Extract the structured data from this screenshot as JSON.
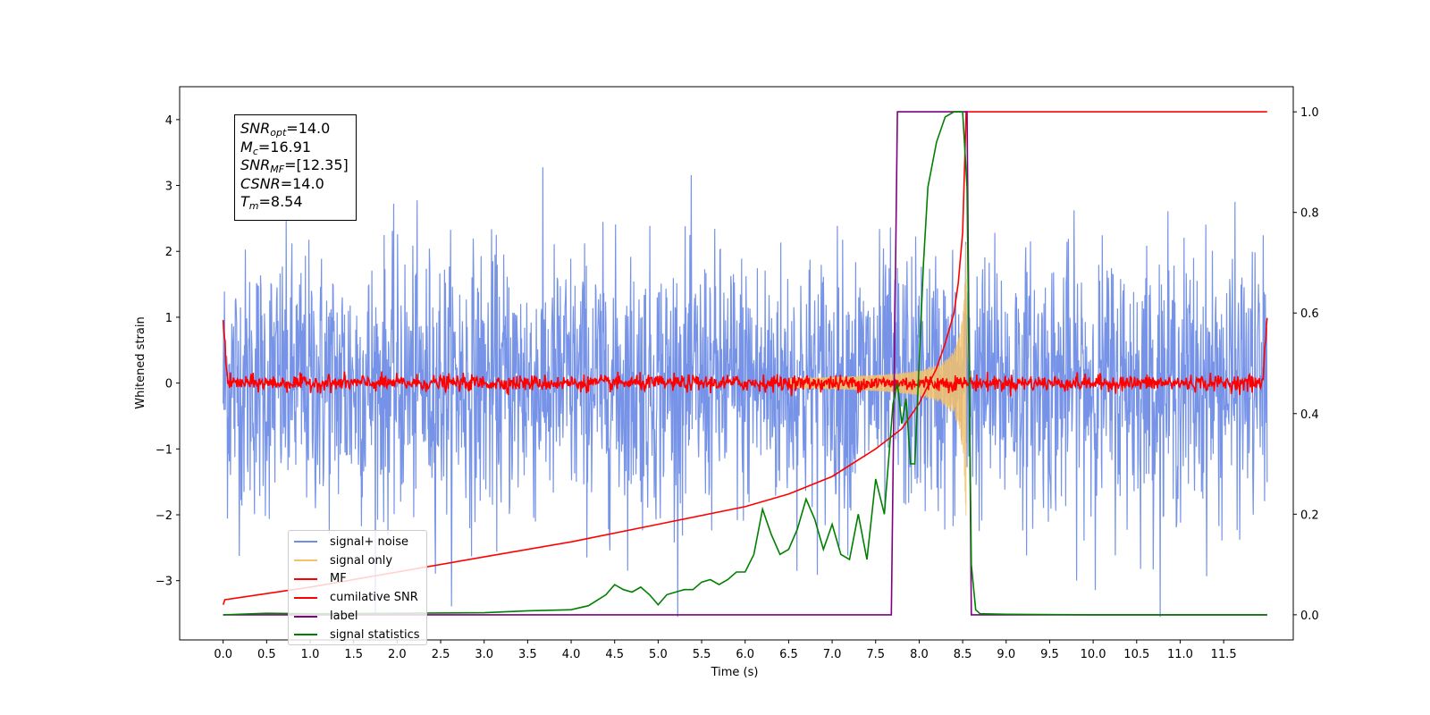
{
  "chart_data": {
    "type": "line",
    "xlabel": "Time (s)",
    "ylabel": "Whitened strain",
    "xlim": [
      -0.5,
      12.3
    ],
    "ylim": [
      -3.9,
      4.5
    ],
    "y2lim": [
      -0.05,
      1.05
    ],
    "x_ticks": [
      "0.0",
      "0.5",
      "1.0",
      "1.5",
      "2.0",
      "2.5",
      "3.0",
      "3.5",
      "4.0",
      "4.5",
      "5.0",
      "5.5",
      "6.0",
      "6.5",
      "7.0",
      "7.5",
      "8.0",
      "8.5",
      "9.0",
      "9.5",
      "10.0",
      "10.5",
      "11.0",
      "11.5"
    ],
    "y_ticks": [
      "4",
      "3",
      "2",
      "1",
      "0",
      "−1",
      "−2",
      "−3"
    ],
    "y2_ticks": [
      "1.0",
      "0.8",
      "0.6",
      "0.4",
      "0.2",
      "0.0"
    ],
    "annotation": [
      {
        "sym": "SNR",
        "sub": "opt",
        "value": "=14.0"
      },
      {
        "sym": "M",
        "sub": "c",
        "value": "=16.91"
      },
      {
        "sym": "SNR",
        "sub": "MF",
        "value": "=[12.35]"
      },
      {
        "sym": "CSNR",
        "sub": "",
        "value": "=14.0"
      },
      {
        "sym": "T",
        "sub": "m",
        "value": "=8.54"
      }
    ],
    "legend": {
      "placement": "lower-left",
      "entries": [
        {
          "label": "signal+ noise",
          "color": "#6f8de6"
        },
        {
          "label": "signal only",
          "color": "#f5c26b"
        },
        {
          "label": "MF",
          "color": "#ff0000"
        },
        {
          "label": "cumilative SNR",
          "color": "#ff0000"
        },
        {
          "label": "label",
          "color": "#800080"
        },
        {
          "label": "signal statistics",
          "color": "#008000"
        }
      ]
    },
    "series": [
      {
        "name": "signal+ noise",
        "axis": "left",
        "color": "#6f8de6",
        "description_values": {
          "x_range": [
            0.0,
            12.0
          ],
          "mean": 0.0,
          "std": 1.0,
          "max": 4.17,
          "min": -3.6
        }
      },
      {
        "name": "signal only",
        "axis": "left",
        "color": "#f5c26b",
        "chirp": {
          "start": 6.5,
          "merger": 8.54,
          "peak_amplitude": 2.4
        }
      },
      {
        "name": "MF",
        "axis": "left",
        "color": "#ff0000",
        "x": [
          0.0,
          0.05,
          11.95,
          12.0
        ],
        "y": [
          1.0,
          0.0,
          0.0,
          1.0
        ],
        "noise_std": 0.06
      },
      {
        "name": "cumilative SNR",
        "axis": "right",
        "color": "#ff0000",
        "x": [
          0.0,
          0.02,
          1.0,
          2.0,
          3.0,
          4.0,
          5.0,
          6.0,
          6.5,
          7.0,
          7.5,
          7.8,
          8.0,
          8.2,
          8.3,
          8.4,
          8.45,
          8.5,
          8.54,
          8.6,
          9.0,
          10.0,
          11.0,
          12.0
        ],
        "y": [
          0.02,
          0.03,
          0.055,
          0.085,
          0.115,
          0.145,
          0.18,
          0.215,
          0.24,
          0.275,
          0.33,
          0.37,
          0.42,
          0.49,
          0.54,
          0.6,
          0.66,
          0.76,
          1.0,
          1.0,
          1.0,
          1.0,
          1.0,
          1.0
        ]
      },
      {
        "name": "label",
        "axis": "right",
        "color": "#800080",
        "x": [
          0.0,
          7.68,
          7.75,
          8.55,
          8.6,
          12.0
        ],
        "y": [
          0.0,
          0.0,
          1.0,
          1.0,
          0.0,
          0.0
        ]
      },
      {
        "name": "signal statistics",
        "axis": "right",
        "color": "#008000",
        "x": [
          0.0,
          0.5,
          1.0,
          2.0,
          3.0,
          3.5,
          4.0,
          4.2,
          4.4,
          4.5,
          4.6,
          4.7,
          4.8,
          4.9,
          5.0,
          5.1,
          5.2,
          5.3,
          5.4,
          5.5,
          5.6,
          5.7,
          5.8,
          5.9,
          6.0,
          6.1,
          6.2,
          6.3,
          6.4,
          6.5,
          6.6,
          6.7,
          6.8,
          6.9,
          7.0,
          7.1,
          7.2,
          7.3,
          7.4,
          7.5,
          7.6,
          7.7,
          7.75,
          7.8,
          7.85,
          7.9,
          7.95,
          8.0,
          8.05,
          8.1,
          8.2,
          8.3,
          8.4,
          8.5,
          8.55,
          8.6,
          8.65,
          8.7,
          9.0,
          10.0,
          12.0
        ],
        "y": [
          0.0,
          0.003,
          0.002,
          0.003,
          0.004,
          0.008,
          0.01,
          0.018,
          0.04,
          0.06,
          0.05,
          0.045,
          0.055,
          0.04,
          0.02,
          0.04,
          0.045,
          0.05,
          0.05,
          0.065,
          0.07,
          0.06,
          0.07,
          0.085,
          0.085,
          0.12,
          0.21,
          0.16,
          0.12,
          0.13,
          0.17,
          0.23,
          0.19,
          0.13,
          0.18,
          0.12,
          0.11,
          0.2,
          0.11,
          0.27,
          0.2,
          0.42,
          0.46,
          0.38,
          0.43,
          0.3,
          0.3,
          0.5,
          0.7,
          0.85,
          0.94,
          0.99,
          1.0,
          1.0,
          0.85,
          0.1,
          0.01,
          0.002,
          0.001,
          0.0,
          0.0
        ]
      }
    ]
  }
}
